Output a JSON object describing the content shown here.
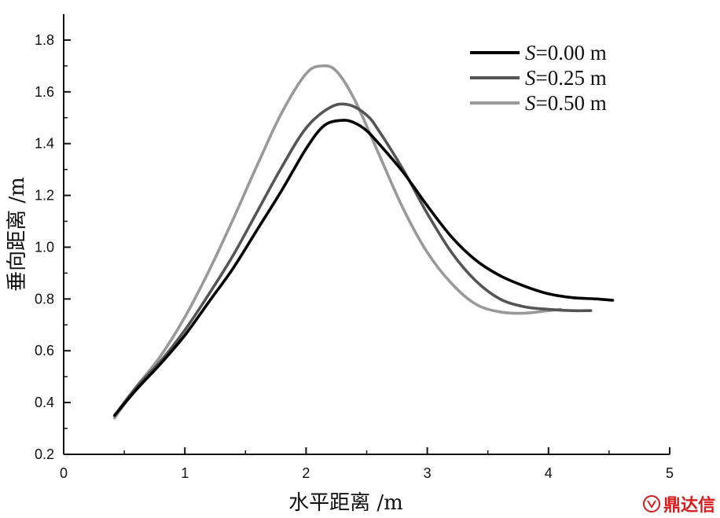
{
  "chart_data": {
    "type": "line",
    "xlabel": "水平距离 /m",
    "ylabel": "垂向距离 /m",
    "xlim": [
      0,
      5
    ],
    "ylim": [
      0.2,
      1.9
    ],
    "xticks": [
      0,
      1,
      2,
      3,
      4,
      5
    ],
    "yticks": [
      0.2,
      0.4,
      0.6,
      0.8,
      1.0,
      1.2,
      1.4,
      1.6,
      1.8
    ],
    "ytick_labels": [
      "0.2",
      "0.4",
      "0.6",
      "0.8",
      "1.0",
      "1.2",
      "1.4",
      "1.6",
      "1.8"
    ],
    "grid": false,
    "legend_position": "top-right",
    "series": [
      {
        "name": "S=0.00 m",
        "name_italic": "S",
        "name_rest": "=0.00 m",
        "color": "#000000",
        "x": [
          0.42,
          0.6,
          0.8,
          1.0,
          1.2,
          1.4,
          1.6,
          1.8,
          2.0,
          2.15,
          2.3,
          2.4,
          2.5,
          2.6,
          2.8,
          3.0,
          3.2,
          3.4,
          3.6,
          3.8,
          4.0,
          4.2,
          4.4,
          4.53
        ],
        "y": [
          0.35,
          0.45,
          0.55,
          0.66,
          0.79,
          0.92,
          1.07,
          1.22,
          1.38,
          1.47,
          1.49,
          1.48,
          1.45,
          1.4,
          1.29,
          1.16,
          1.04,
          0.95,
          0.89,
          0.85,
          0.82,
          0.805,
          0.8,
          0.795
        ]
      },
      {
        "name": "S=0.25 m",
        "name_italic": "S",
        "name_rest": "=0.25 m",
        "color": "#555555",
        "x": [
          0.42,
          0.6,
          0.8,
          1.0,
          1.2,
          1.4,
          1.6,
          1.8,
          2.0,
          2.2,
          2.35,
          2.5,
          2.6,
          2.8,
          3.0,
          3.2,
          3.4,
          3.6,
          3.8,
          4.0,
          4.2,
          4.35
        ],
        "y": [
          0.35,
          0.46,
          0.56,
          0.68,
          0.82,
          0.97,
          1.14,
          1.31,
          1.46,
          1.54,
          1.55,
          1.51,
          1.45,
          1.3,
          1.13,
          0.98,
          0.87,
          0.8,
          0.77,
          0.76,
          0.755,
          0.755
        ]
      },
      {
        "name": "S=0.50 m",
        "name_italic": "S",
        "name_rest": "=0.50 m",
        "color": "#999999",
        "x": [
          0.42,
          0.6,
          0.8,
          1.0,
          1.2,
          1.4,
          1.6,
          1.8,
          2.0,
          2.13,
          2.25,
          2.4,
          2.6,
          2.8,
          3.0,
          3.2,
          3.4,
          3.6,
          3.8,
          4.0,
          4.1
        ],
        "y": [
          0.34,
          0.46,
          0.58,
          0.73,
          0.91,
          1.11,
          1.32,
          1.52,
          1.67,
          1.7,
          1.68,
          1.57,
          1.36,
          1.15,
          0.98,
          0.86,
          0.78,
          0.75,
          0.745,
          0.755,
          0.76
        ]
      }
    ]
  },
  "watermark": {
    "text": "鼎达信"
  }
}
